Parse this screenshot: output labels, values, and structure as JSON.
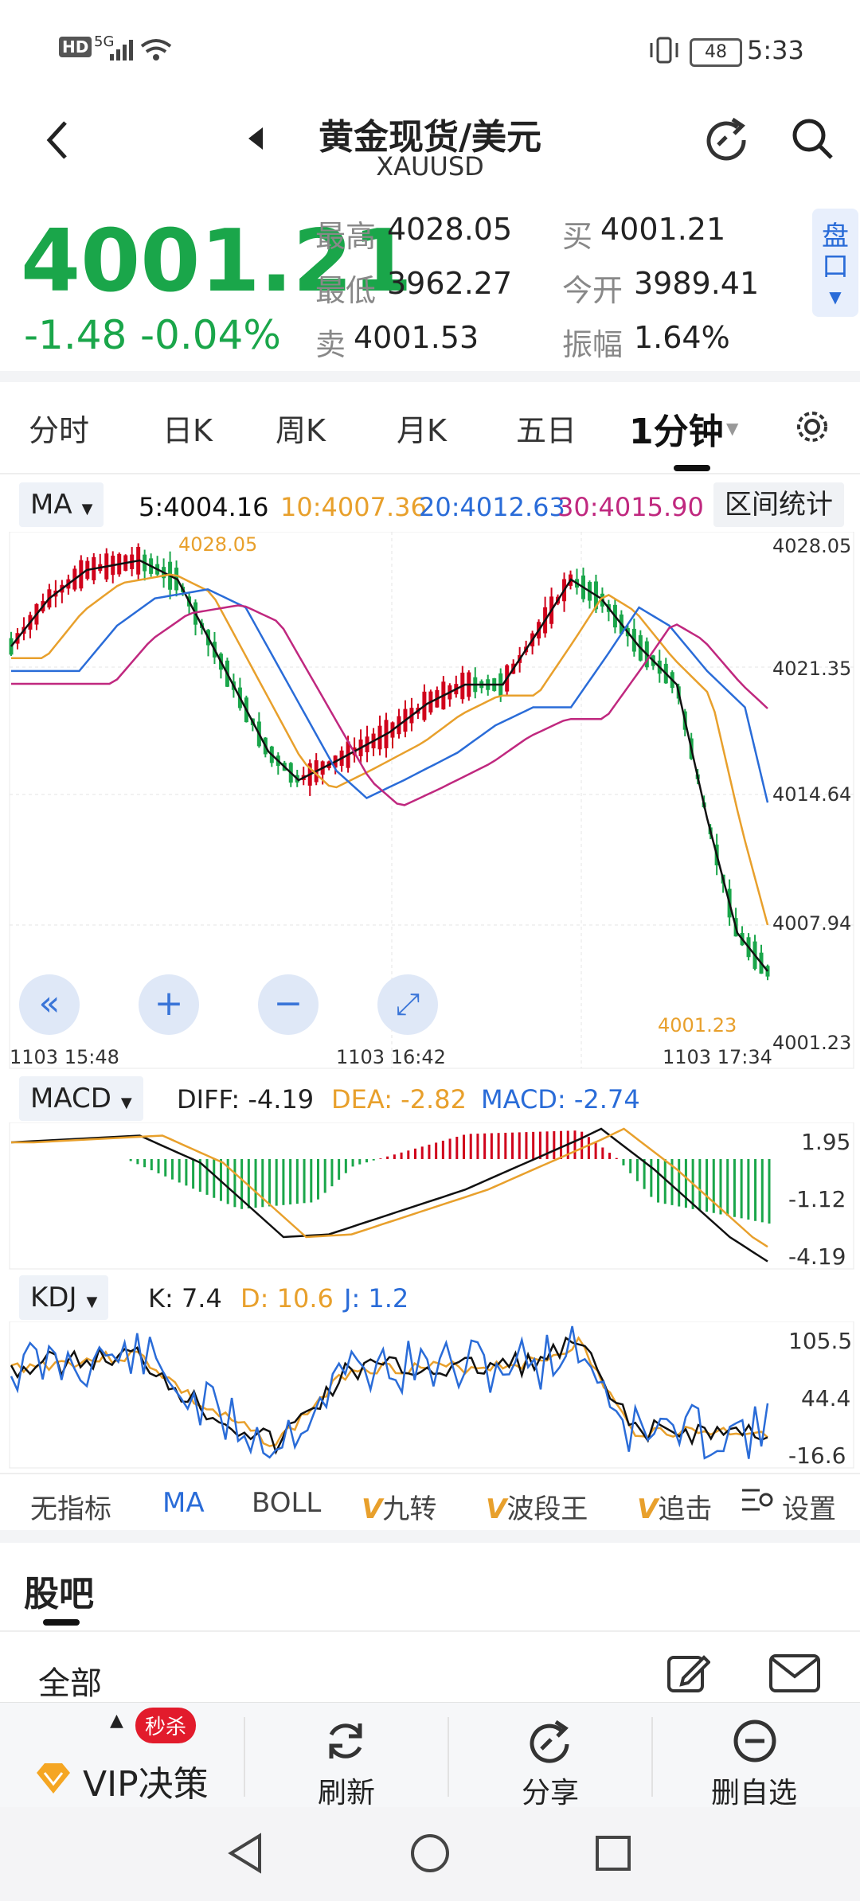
{
  "status_bar": {
    "hd": "HD",
    "signal": "5G",
    "battery": "48",
    "time": "5:33"
  },
  "header": {
    "title": "黄金现货/美元",
    "subtitle": "XAUUSD"
  },
  "quote": {
    "price": "4001.21",
    "change": "-1.48",
    "change_pct": "-0.04%",
    "high_label": "最高",
    "high": "4028.05",
    "low_label": "最低",
    "low": "3962.27",
    "sell_label": "卖",
    "sell": "4001.53",
    "buy_label": "买",
    "buy": "4001.21",
    "open_label": "今开",
    "open": "3989.41",
    "amp_label": "振幅",
    "amp": "1.64%",
    "pankou": "盘口"
  },
  "tabs": [
    "分时",
    "日K",
    "周K",
    "月K",
    "五日",
    "1分钟"
  ],
  "ma_row": {
    "btn": "MA",
    "ma5": "5:4004.16",
    "ma10": "10:4007.36",
    "ma20": "20:4012.63",
    "ma30": "30:4015.90",
    "range": "区间统计"
  },
  "main_chart": {
    "y_ticks": [
      "4028.05",
      "4021.35",
      "4014.64",
      "4007.94",
      "4001.23"
    ],
    "max_label": "4028.05",
    "last_label": "4001.23",
    "x_labels": [
      "1103  15:48",
      "1103  16:42",
      "1103  17:34"
    ]
  },
  "macd_row": {
    "btn": "MACD",
    "diff": "DIFF: -4.19",
    "dea": "DEA: -2.82",
    "macd": "MACD: -2.74",
    "y_ticks": [
      "1.95",
      "-1.12",
      "-4.19"
    ]
  },
  "kdj_row": {
    "btn": "KDJ",
    "k": "K: 7.4",
    "d": "D: 10.6",
    "j": "J: 1.2",
    "y_ticks": [
      "105.5",
      "44.4",
      "-16.6"
    ]
  },
  "indicator_tabs": {
    "none": "无指标",
    "ma": "MA",
    "boll": "BOLL",
    "v1": "九转",
    "v2": "波段王",
    "v3": "追击",
    "settings": "设置"
  },
  "guba": {
    "title": "股吧",
    "all": "全部"
  },
  "bottom_bar": {
    "vip": "VIP决策",
    "badge": "秒杀",
    "refresh": "刷新",
    "share": "分享",
    "remove": "删自选"
  },
  "colors": {
    "up": "#d0021b",
    "down": "#1aa64a",
    "ma5": "#111111",
    "ma10": "#e8a02c",
    "ma20": "#2a6cd8",
    "ma30": "#c0287f"
  }
}
